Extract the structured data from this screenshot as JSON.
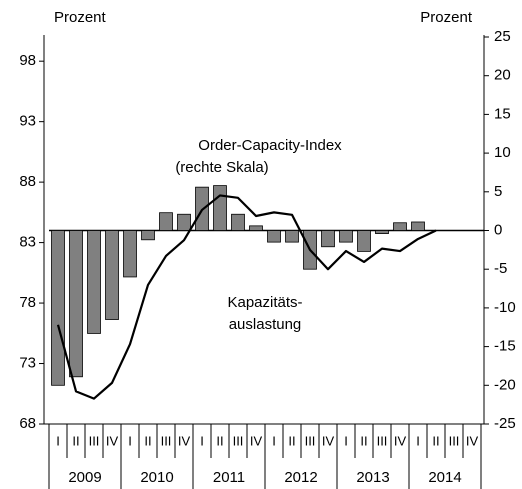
{
  "chart_data": {
    "type": "bar-line",
    "ylabel": "Prozent",
    "y2label": "Prozent",
    "annotations": [
      "Order-Capacity-Index",
      "(rechte Skala)",
      "Kapazitäts-",
      "auslastung"
    ],
    "categories": [
      "I",
      "II",
      "III",
      "IV",
      "I",
      "II",
      "III",
      "IV",
      "I",
      "II",
      "III",
      "IV",
      "I",
      "II",
      "III",
      "IV",
      "I",
      "II",
      "III",
      "IV",
      "I",
      "II",
      "III",
      "IV"
    ],
    "years": [
      "2009",
      "2010",
      "2011",
      "2012",
      "2013",
      "2014"
    ],
    "ylim": [
      68,
      100
    ],
    "yticks": [
      68,
      73,
      78,
      83,
      88,
      93,
      98
    ],
    "y2lim": [
      -25,
      25
    ],
    "y2ticks": [
      -25,
      -20,
      -15,
      -10,
      -5,
      0,
      5,
      10,
      15,
      20,
      25
    ],
    "series": [
      {
        "type": "bar",
        "axis": "y2",
        "color": "#808080",
        "values": [
          -20,
          -18.9,
          -13.3,
          -11.5,
          -6,
          -1.2,
          2.3,
          2.1,
          5.6,
          5.8,
          2.1,
          0.6,
          -1.5,
          -1.5,
          -5,
          -2.1,
          -1.5,
          -2.7,
          -0.4,
          1,
          1.1,
          null,
          null,
          null
        ]
      },
      {
        "type": "line",
        "axis": "y",
        "color": "#000000",
        "values": [
          76.2,
          70.7,
          70.1,
          71.4,
          74.6,
          79.5,
          81.9,
          83.2,
          85.7,
          86.9,
          86.7,
          85.2,
          85.5,
          85.3,
          82.4,
          80.8,
          82.3,
          81.4,
          82.5,
          82.3,
          83.3,
          84.0,
          null,
          null
        ]
      }
    ]
  }
}
